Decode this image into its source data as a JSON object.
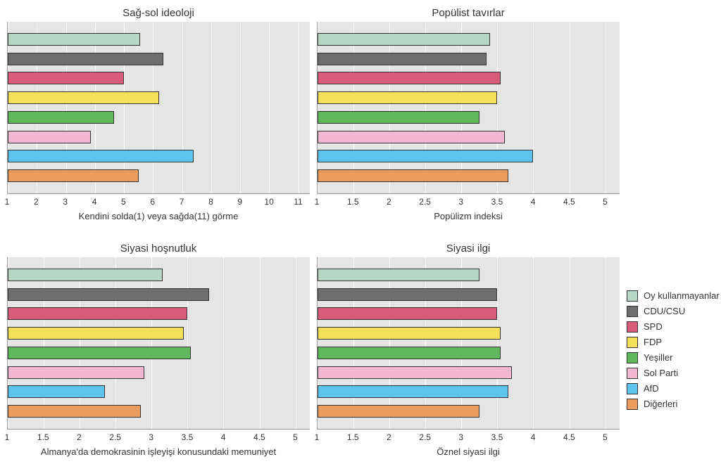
{
  "palette": {
    "bar_border": "#333333",
    "plot_bg": "#e5e5e5",
    "grid_color": "#ffffff",
    "text_color": "#333333"
  },
  "categories": [
    {
      "key": "oy",
      "label": "Oy kullanmayanlar",
      "color": "#b7d6c6"
    },
    {
      "key": "cdu",
      "label": "CDU/CSU",
      "color": "#6e6e6e"
    },
    {
      "key": "spd",
      "label": "SPD",
      "color": "#d95b7a"
    },
    {
      "key": "fdp",
      "label": "FDP",
      "color": "#f5e05a"
    },
    {
      "key": "yes",
      "label": "Yeşiller",
      "color": "#5fb85c"
    },
    {
      "key": "sol",
      "label": "Sol Parti",
      "color": "#f2b8d2"
    },
    {
      "key": "afd",
      "label": "AfD",
      "color": "#5bc5ef"
    },
    {
      "key": "dig",
      "label": "Diğerleri",
      "color": "#ec9d5e"
    }
  ],
  "legend_title": null,
  "charts": [
    {
      "id": "ideology",
      "title": "Sağ-sol ideoloji",
      "xlabel": "Kendini solda(1) veya sağda(11) görme",
      "xlim": [
        1,
        11.4
      ],
      "xticks": [
        1,
        2,
        3,
        4,
        5,
        6,
        7,
        8,
        9,
        10,
        11
      ],
      "values": {
        "oy": 5.55,
        "cdu": 6.35,
        "spd": 5.0,
        "fdp": 6.2,
        "yes": 4.65,
        "sol": 3.85,
        "afd": 7.4,
        "dig": 5.5
      },
      "title_fontsize": 15,
      "label_fontsize": 13,
      "tick_fontsize": 12,
      "bar_width": 0.75,
      "type": "bar"
    },
    {
      "id": "populist",
      "title": "Popülist tavırlar",
      "xlabel": "Popülizm indeksi",
      "xlim": [
        1,
        5.2
      ],
      "xticks": [
        1,
        1.5,
        2,
        2.5,
        3,
        3.5,
        4,
        4.5,
        5
      ],
      "values": {
        "oy": 3.4,
        "cdu": 3.35,
        "spd": 3.55,
        "fdp": 3.5,
        "yes": 3.25,
        "sol": 3.6,
        "afd": 4.0,
        "dig": 3.65
      },
      "title_fontsize": 15,
      "label_fontsize": 13,
      "tick_fontsize": 12,
      "bar_width": 0.75,
      "type": "bar"
    },
    {
      "id": "satisfaction",
      "title": "Siyasi hoşnutluk",
      "xlabel": "Almanya'da demokrasinin işleyişi konusundaki memuniyet",
      "xlim": [
        1,
        5.2
      ],
      "xticks": [
        1,
        1.5,
        2,
        2.5,
        3,
        3.5,
        4,
        4.5,
        5
      ],
      "values": {
        "oy": 3.15,
        "cdu": 3.8,
        "spd": 3.5,
        "fdp": 3.45,
        "yes": 3.55,
        "sol": 2.9,
        "afd": 2.35,
        "dig": 2.85
      },
      "title_fontsize": 15,
      "label_fontsize": 13,
      "tick_fontsize": 12,
      "bar_width": 0.75,
      "type": "bar"
    },
    {
      "id": "interest",
      "title": "Siyasi ilgi",
      "xlabel": "Öznel siyasi ilgi",
      "xlim": [
        1,
        5.2
      ],
      "xticks": [
        1,
        1.5,
        2,
        2.5,
        3,
        3.5,
        4,
        4.5,
        5
      ],
      "values": {
        "oy": 3.25,
        "cdu": 3.5,
        "spd": 3.5,
        "fdp": 3.55,
        "yes": 3.55,
        "sol": 3.7,
        "afd": 3.65,
        "dig": 3.25
      },
      "title_fontsize": 15,
      "label_fontsize": 13,
      "tick_fontsize": 12,
      "bar_width": 0.75,
      "type": "bar"
    }
  ]
}
